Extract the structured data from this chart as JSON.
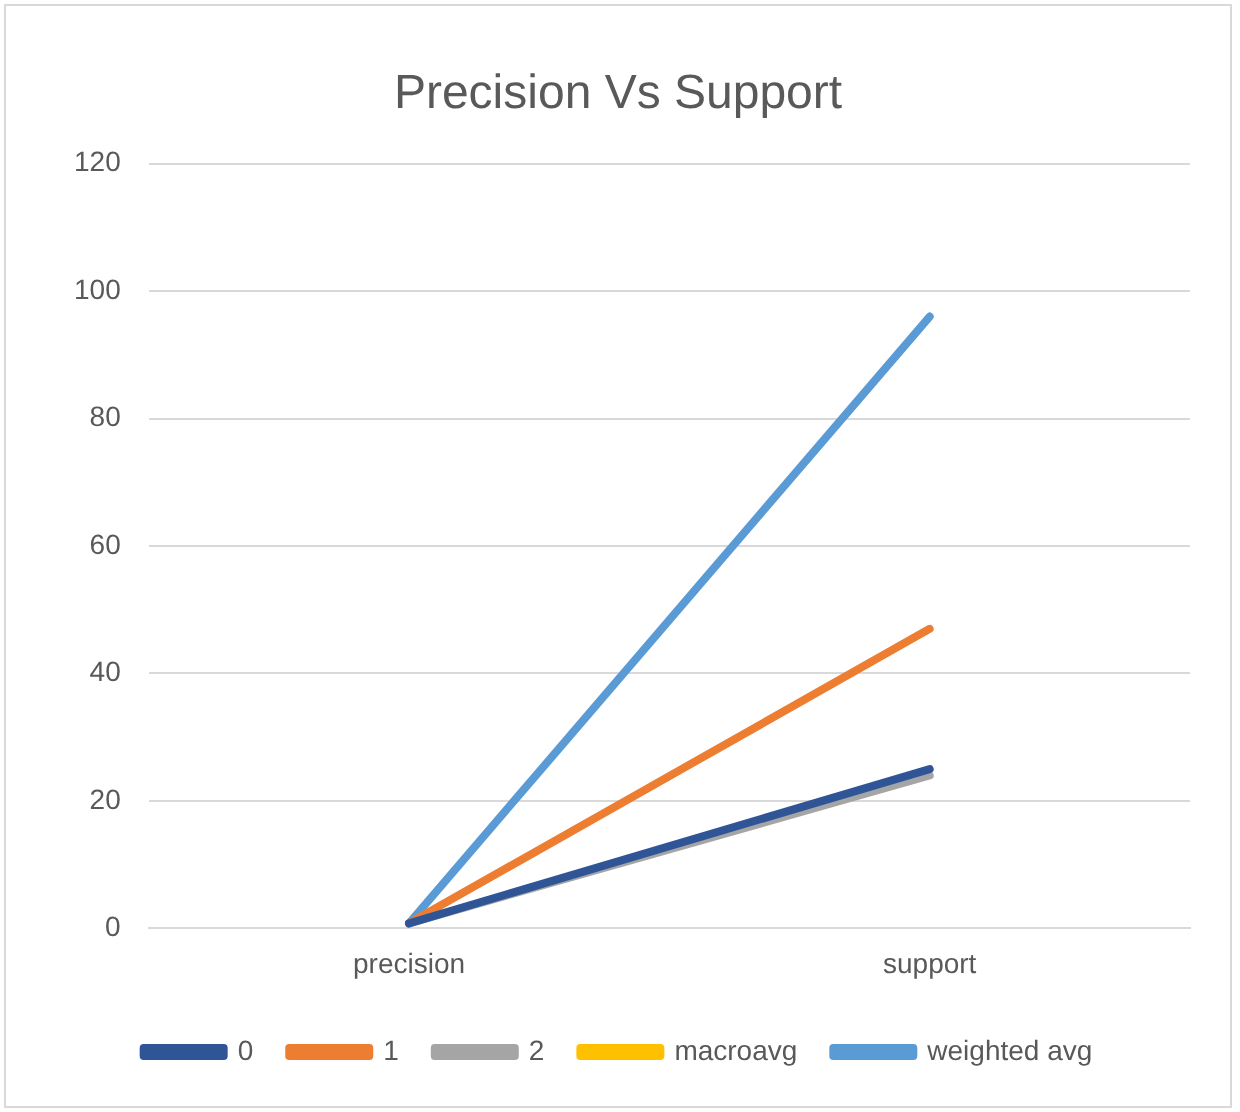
{
  "chart_data": {
    "type": "line",
    "title": "Precision Vs Support",
    "categories": [
      "precision",
      "support"
    ],
    "series": [
      {
        "name": "0",
        "color": "#2f5597",
        "values": [
          0.8,
          25
        ]
      },
      {
        "name": "1",
        "color": "#ed7d31",
        "values": [
          0.8,
          47
        ]
      },
      {
        "name": "2",
        "color": "#a5a5a5",
        "values": [
          0.8,
          24
        ]
      },
      {
        "name": "macroavg",
        "color": "#ffc000",
        "values": [
          null,
          null
        ]
      },
      {
        "name": "weighted avg",
        "color": "#5b9bd5",
        "values": [
          0.8,
          96
        ]
      }
    ],
    "ylim": [
      0,
      120
    ],
    "yticks": [
      0,
      20,
      40,
      60,
      80,
      100,
      120
    ],
    "grid": "y",
    "legend": "bottom",
    "marker": "none",
    "line_style": "solid"
  }
}
